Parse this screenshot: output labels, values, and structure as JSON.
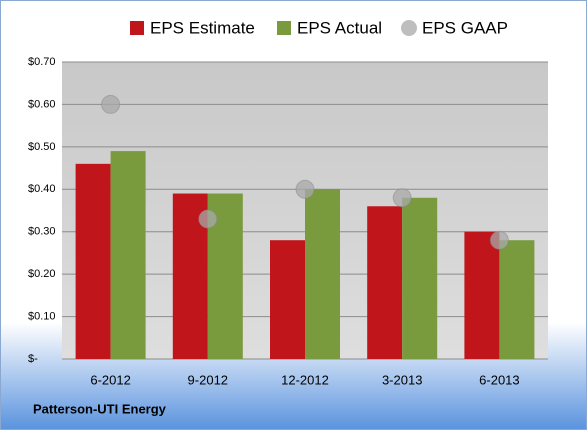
{
  "chart_data": {
    "type": "bar",
    "categories": [
      "6-2012",
      "9-2012",
      "12-2012",
      "3-2013",
      "6-2013"
    ],
    "series": [
      {
        "name": "EPS Estimate",
        "color": "#c0161b",
        "type": "bar",
        "values": [
          0.46,
          0.39,
          0.28,
          0.36,
          0.3
        ]
      },
      {
        "name": "EPS Actual",
        "color": "#7a9a3e",
        "type": "bar",
        "values": [
          0.49,
          0.39,
          0.4,
          0.38,
          0.28
        ]
      },
      {
        "name": "EPS GAAP",
        "color": "#a8a8a8",
        "type": "scatter",
        "values": [
          0.6,
          0.33,
          0.4,
          0.38,
          0.28
        ]
      }
    ],
    "ylim": [
      0,
      0.7
    ],
    "yticks": [
      {
        "value": 0,
        "label": "$-"
      },
      {
        "value": 0.1,
        "label": "$0.10"
      },
      {
        "value": 0.2,
        "label": "$0.20"
      },
      {
        "value": 0.3,
        "label": "$0.30"
      },
      {
        "value": 0.4,
        "label": "$0.40"
      },
      {
        "value": 0.5,
        "label": "$0.50"
      },
      {
        "value": 0.6,
        "label": "$0.60"
      },
      {
        "value": 0.7,
        "label": "$0.70"
      }
    ],
    "grid": true,
    "caption": "Patterson-UTI Energy"
  }
}
